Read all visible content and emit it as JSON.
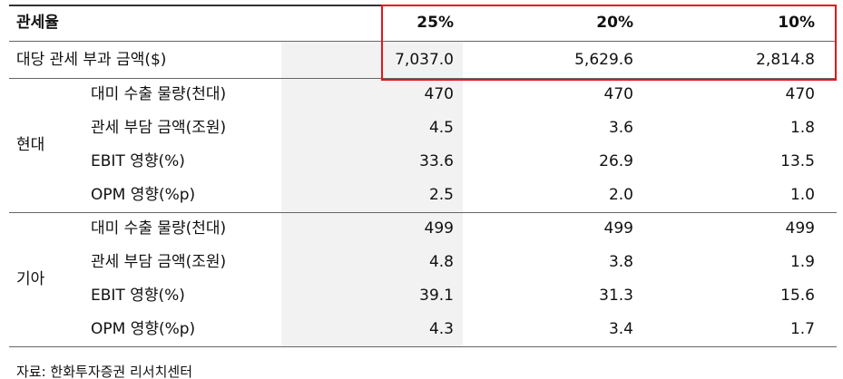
{
  "header": {
    "label": "관세율",
    "columns": [
      "25%",
      "20%",
      "10%"
    ]
  },
  "summary": {
    "label": "대당 관세 부과 금액($)",
    "values": [
      "7,037.0",
      "5,629.6",
      "2,814.8"
    ]
  },
  "groups": [
    {
      "name": "현대",
      "rows": [
        {
          "label": "대미 수출 물량(천대)",
          "values": [
            "470",
            "470",
            "470"
          ]
        },
        {
          "label": "관세 부담 금액(조원)",
          "values": [
            "4.5",
            "3.6",
            "1.8"
          ]
        },
        {
          "label": "EBIT 영향(%)",
          "values": [
            "33.6",
            "26.9",
            "13.5"
          ]
        },
        {
          "label": "OPM 영향(%p)",
          "values": [
            "2.5",
            "2.0",
            "1.0"
          ]
        }
      ]
    },
    {
      "name": "기아",
      "rows": [
        {
          "label": "대미 수출 물량(천대)",
          "values": [
            "499",
            "499",
            "499"
          ]
        },
        {
          "label": "관세 부담 금액(조원)",
          "values": [
            "4.8",
            "3.8",
            "1.9"
          ]
        },
        {
          "label": "EBIT 영향(%)",
          "values": [
            "39.1",
            "31.3",
            "15.6"
          ]
        },
        {
          "label": "OPM 영향(%p)",
          "values": [
            "4.3",
            "3.4",
            "1.7"
          ]
        }
      ]
    }
  ],
  "source": "자료: 한화투자증권 리서치센터"
}
